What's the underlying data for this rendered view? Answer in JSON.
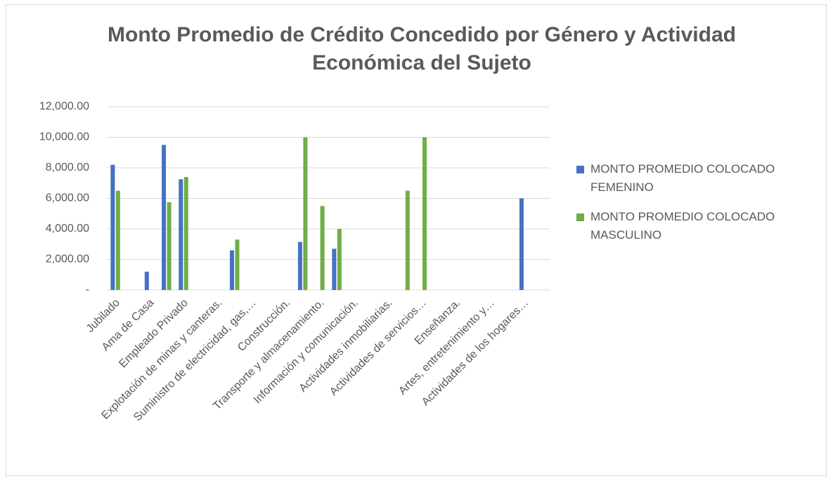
{
  "chart_data": {
    "type": "bar",
    "title": "Monto Promedio de Crédito Concedido por Género y Actividad Económica del Sujeto",
    "categories": [
      "Jubilado",
      null,
      "Ama de Casa",
      null,
      "Empleado Privado",
      null,
      "Explotación de minas y canteras.",
      null,
      "Suministro de electricidad, gas,…",
      null,
      "Construcción.",
      null,
      "Transporte y almacenamiento.",
      null,
      "Información y comunicación.",
      null,
      "Actividades inmobiliarias.",
      null,
      "Actividades de servicios…",
      null,
      "Enseñanza.",
      null,
      "Artes, entretenimiento y…",
      null,
      "Actividades de los hogares…",
      null
    ],
    "series": [
      {
        "name": "MONTO PROMEDIO COLOCADO FEMENINO",
        "color": "#4472c4",
        "values": [
          8200,
          null,
          1200,
          9500,
          7250,
          null,
          null,
          2600,
          null,
          null,
          null,
          3150,
          null,
          2700,
          null,
          null,
          null,
          null,
          null,
          null,
          null,
          null,
          null,
          null,
          6000,
          null
        ]
      },
      {
        "name": "MONTO PROMEDIO COLOCADO MASCULINO",
        "color": "#70ad47",
        "values": [
          6500,
          null,
          null,
          5750,
          7400,
          null,
          null,
          3300,
          null,
          null,
          null,
          10000,
          5500,
          4000,
          null,
          null,
          null,
          6500,
          10000,
          null,
          null,
          null,
          null,
          null,
          null,
          null
        ]
      }
    ],
    "ylim": [
      0,
      12000
    ],
    "yticks": [
      {
        "value": 0,
        "label": "-"
      },
      {
        "value": 2000,
        "label": "2,000.00"
      },
      {
        "value": 4000,
        "label": "4,000.00"
      },
      {
        "value": 6000,
        "label": "6,000.00"
      },
      {
        "value": 8000,
        "label": "8,000.00"
      },
      {
        "value": 10000,
        "label": "10,000.00"
      },
      {
        "value": 12000,
        "label": "12,000.00"
      }
    ],
    "grid": true,
    "legend": "right"
  }
}
